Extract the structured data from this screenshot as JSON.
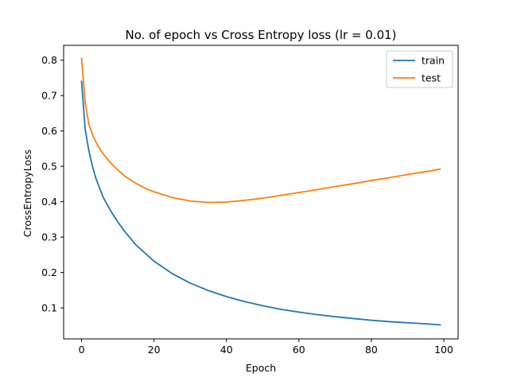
{
  "chart_data": {
    "type": "line",
    "title": "No. of epoch vs Cross Entropy loss (lr = 0.01)",
    "xlabel": "Epoch",
    "ylabel": "CrossEntropyLoss",
    "xlim": [
      -4.95,
      103.95
    ],
    "ylim": [
      0.0125,
      0.842
    ],
    "xticks": [
      0,
      20,
      40,
      60,
      80,
      100
    ],
    "yticks": [
      0.1,
      0.2,
      0.3,
      0.4,
      0.5,
      0.6,
      0.7,
      0.8
    ],
    "grid": false,
    "legend_position": "top-right",
    "series": [
      {
        "name": "train",
        "color": "#1f77b4",
        "x": [
          0,
          1,
          2,
          3,
          4,
          5,
          6,
          8,
          10,
          12,
          15,
          20,
          25,
          30,
          35,
          40,
          45,
          50,
          55,
          60,
          65,
          70,
          75,
          80,
          85,
          90,
          95,
          99
        ],
        "y": [
          0.74,
          0.605,
          0.545,
          0.5,
          0.465,
          0.438,
          0.412,
          0.375,
          0.343,
          0.315,
          0.278,
          0.232,
          0.197,
          0.17,
          0.149,
          0.132,
          0.118,
          0.106,
          0.096,
          0.088,
          0.081,
          0.075,
          0.07,
          0.065,
          0.061,
          0.058,
          0.055,
          0.052
        ]
      },
      {
        "name": "test",
        "color": "#ff7f0e",
        "x": [
          0,
          1,
          2,
          3,
          4,
          5,
          6,
          8,
          10,
          12,
          15,
          18,
          20,
          25,
          30,
          35,
          40,
          45,
          50,
          55,
          60,
          65,
          70,
          75,
          80,
          85,
          90,
          95,
          99
        ],
        "y": [
          0.805,
          0.68,
          0.62,
          0.59,
          0.568,
          0.55,
          0.535,
          0.51,
          0.49,
          0.472,
          0.452,
          0.436,
          0.428,
          0.412,
          0.402,
          0.398,
          0.399,
          0.404,
          0.41,
          0.418,
          0.426,
          0.434,
          0.443,
          0.451,
          0.46,
          0.468,
          0.477,
          0.485,
          0.492
        ]
      }
    ]
  }
}
